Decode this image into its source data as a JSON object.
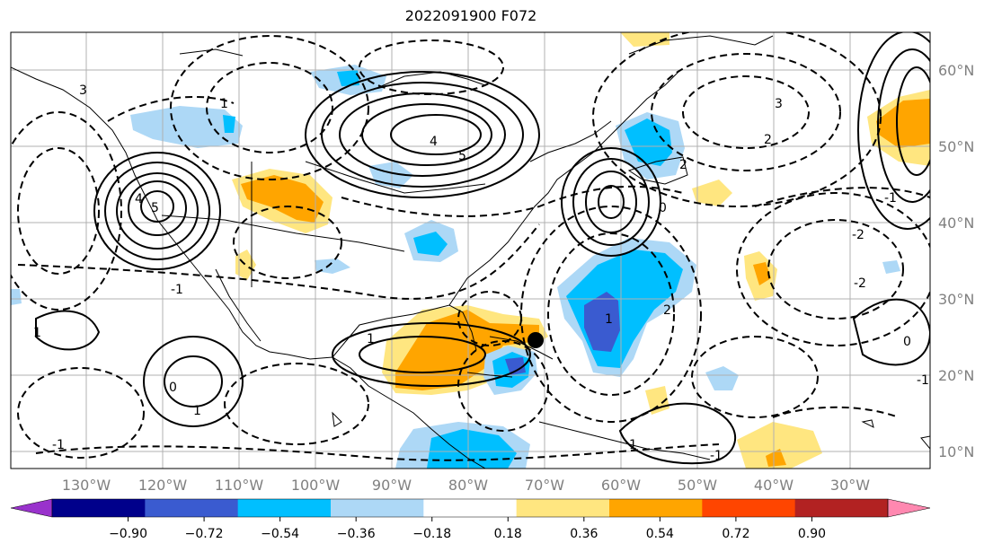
{
  "title": "2022091900 F072",
  "lat_labels": [
    "60°N",
    "50°N",
    "40°N",
    "30°N",
    "20°N",
    "10°N"
  ],
  "lon_labels": [
    "130°W",
    "120°W",
    "110°W",
    "100°W",
    "90°W",
    "80°W",
    "70°W",
    "60°W",
    "50°W",
    "40°W",
    "30°W"
  ],
  "colorbar": {
    "colors": [
      "#9932cc",
      "#00008b",
      "#3a5bd0",
      "#00bfff",
      "#add8f6",
      "#ffffff",
      "#ffe680",
      "#ffa500",
      "#ff4500",
      "#b22222",
      "#ff88b0"
    ],
    "ticks": [
      "−0.90",
      "−0.72",
      "−0.54",
      "−0.36",
      "−0.18",
      "0.18",
      "0.36",
      "0.54",
      "0.72",
      "0.90"
    ]
  },
  "contour_labels": [
    "5",
    "4",
    "5",
    "4",
    "3",
    "2",
    "1",
    "0",
    "-1",
    "-2",
    "3",
    "1",
    "1",
    "0",
    "-1",
    "1",
    "2",
    "-2",
    "-1",
    "1",
    "-1",
    "2",
    "1",
    "0",
    "-1"
  ],
  "marker": "storm-center"
}
